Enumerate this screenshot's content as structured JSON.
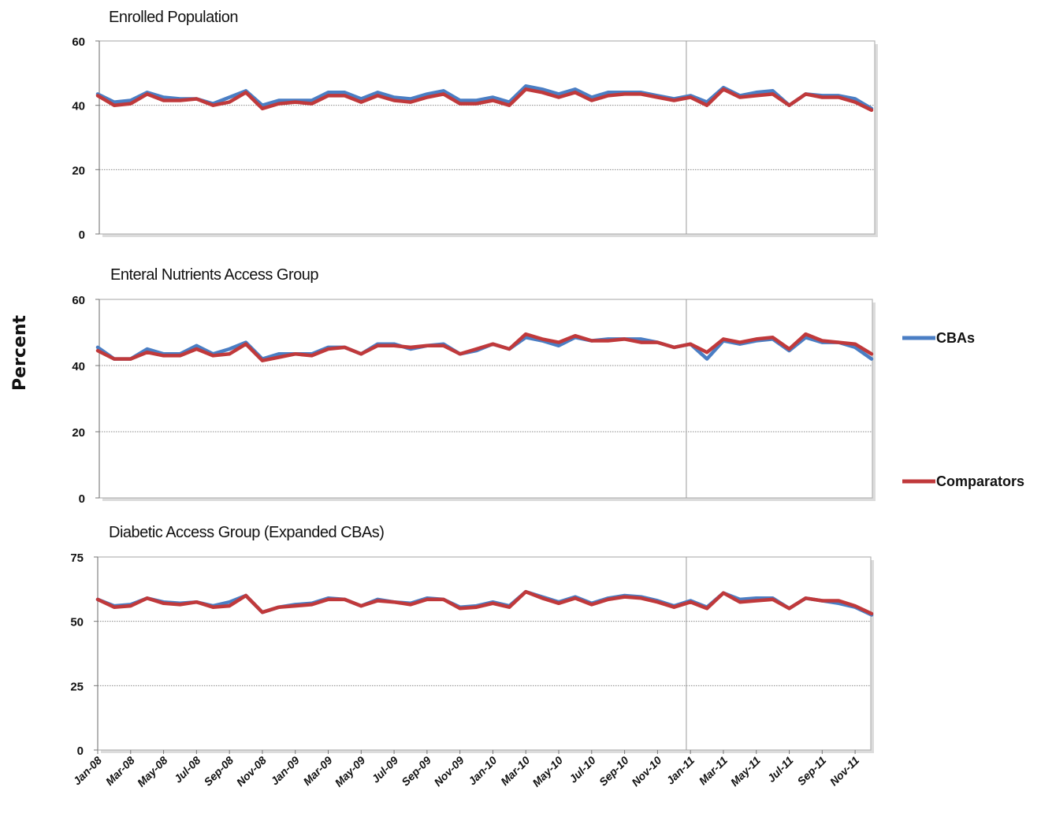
{
  "ylabel": "Percent",
  "legend": [
    {
      "name": "CBAs",
      "color": "#4a7ec4"
    },
    {
      "name": "Comparators",
      "color": "#c0393b"
    }
  ],
  "x_tick_labels": [
    "Jan-08",
    "Mar-08",
    "May-08",
    "Jul-08",
    "Sep-08",
    "Nov-08",
    "Jan-09",
    "Mar-09",
    "May-09",
    "Jul-09",
    "Sep-09",
    "Nov-09",
    "Jan-10",
    "Mar-10",
    "May-10",
    "Jul-10",
    "Sep-10",
    "Nov-10",
    "Jan-11",
    "Mar-11",
    "May-11",
    "Jul-11",
    "Sep-11",
    "Nov-11"
  ],
  "chart_data": [
    {
      "type": "line",
      "title": "Enrolled Population",
      "ylim": [
        0,
        60
      ],
      "yticks": [
        0,
        20,
        40,
        60
      ],
      "x": [
        "Jan-08",
        "Feb-08",
        "Mar-08",
        "Apr-08",
        "May-08",
        "Jun-08",
        "Jul-08",
        "Aug-08",
        "Sep-08",
        "Oct-08",
        "Nov-08",
        "Dec-08",
        "Jan-09",
        "Feb-09",
        "Mar-09",
        "Apr-09",
        "May-09",
        "Jun-09",
        "Jul-09",
        "Aug-09",
        "Sep-09",
        "Oct-09",
        "Nov-09",
        "Dec-09",
        "Jan-10",
        "Feb-10",
        "Mar-10",
        "Apr-10",
        "May-10",
        "Jun-10",
        "Jul-10",
        "Aug-10",
        "Sep-10",
        "Oct-10",
        "Nov-10",
        "Dec-10",
        "Jan-11",
        "Feb-11",
        "Mar-11",
        "Apr-11",
        "May-11",
        "Jun-11",
        "Jul-11",
        "Aug-11",
        "Sep-11",
        "Oct-11",
        "Nov-11",
        "Dec-11"
      ],
      "marker_month": "Dec-10",
      "series": [
        {
          "name": "CBAs",
          "values": [
            43.5,
            41,
            41.5,
            44,
            42.5,
            42,
            42,
            40.5,
            42.5,
            44.5,
            40,
            41.5,
            41.5,
            41.5,
            44,
            44,
            42,
            44,
            42.5,
            42,
            43.5,
            44.5,
            41.5,
            41.5,
            42.5,
            41,
            46,
            45,
            43.5,
            45,
            42.5,
            44,
            44,
            44,
            43,
            42,
            43,
            41,
            45.5,
            43,
            44,
            44.5,
            40,
            43.5,
            43,
            43,
            42,
            39
          ]
        },
        {
          "name": "Comparators",
          "values": [
            43,
            40,
            40.5,
            43.5,
            41.5,
            41.5,
            42,
            40,
            41,
            44,
            39,
            40.5,
            41,
            40.5,
            43,
            43,
            41,
            43,
            41.5,
            41,
            42.5,
            43.5,
            40.5,
            40.5,
            41.5,
            40,
            45,
            44,
            42.5,
            44,
            41.5,
            43,
            43.5,
            43.5,
            42.5,
            41.5,
            42.5,
            40,
            45,
            42.5,
            43,
            43.5,
            40,
            43.5,
            42.5,
            42.5,
            41,
            38.5
          ]
        }
      ]
    },
    {
      "type": "line",
      "title": "Enteral Nutrients Access Group",
      "ylim": [
        0,
        60
      ],
      "yticks": [
        0,
        20,
        40,
        60
      ],
      "x": [
        "Jan-08",
        "Feb-08",
        "Mar-08",
        "Apr-08",
        "May-08",
        "Jun-08",
        "Jul-08",
        "Aug-08",
        "Sep-08",
        "Oct-08",
        "Nov-08",
        "Dec-08",
        "Jan-09",
        "Feb-09",
        "Mar-09",
        "Apr-09",
        "May-09",
        "Jun-09",
        "Jul-09",
        "Aug-09",
        "Sep-09",
        "Oct-09",
        "Nov-09",
        "Dec-09",
        "Jan-10",
        "Feb-10",
        "Mar-10",
        "Apr-10",
        "May-10",
        "Jun-10",
        "Jul-10",
        "Aug-10",
        "Sep-10",
        "Oct-10",
        "Nov-10",
        "Dec-10",
        "Jan-11",
        "Feb-11",
        "Mar-11",
        "Apr-11",
        "May-11",
        "Jun-11",
        "Jul-11",
        "Aug-11",
        "Sep-11",
        "Oct-11",
        "Nov-11",
        "Dec-11"
      ],
      "marker_month": "Dec-10",
      "series": [
        {
          "name": "CBAs",
          "values": [
            45.5,
            42,
            42,
            45,
            43.5,
            43.5,
            46,
            43.5,
            45,
            47,
            42,
            43.5,
            43.5,
            43.5,
            45.5,
            45.5,
            43.5,
            46.5,
            46.5,
            45,
            46,
            46.5,
            43.5,
            44.5,
            46.5,
            45,
            48.5,
            47.5,
            46,
            48.5,
            47.5,
            48,
            48,
            48,
            47,
            45.5,
            46.5,
            42,
            47.5,
            46.5,
            47.5,
            48,
            44.5,
            48.5,
            47,
            47,
            45.5,
            42
          ]
        },
        {
          "name": "Comparators",
          "values": [
            44.5,
            42,
            42,
            44,
            43,
            43,
            45,
            43,
            43.5,
            46.5,
            41.5,
            42.5,
            43.5,
            43,
            45,
            45.5,
            43.5,
            46,
            46,
            45.5,
            46,
            46,
            43.5,
            45,
            46.5,
            45,
            49.5,
            48,
            47,
            49,
            47.5,
            47.5,
            48,
            47,
            47,
            45.5,
            46.5,
            44,
            48,
            47,
            48,
            48.5,
            45,
            49.5,
            47.5,
            47,
            46.5,
            43.5
          ]
        }
      ]
    },
    {
      "type": "line",
      "title": "Diabetic Access Group (Expanded CBAs)",
      "ylim": [
        0,
        75
      ],
      "yticks": [
        0,
        25,
        50,
        75
      ],
      "x": [
        "Jan-08",
        "Feb-08",
        "Mar-08",
        "Apr-08",
        "May-08",
        "Jun-08",
        "Jul-08",
        "Aug-08",
        "Sep-08",
        "Oct-08",
        "Nov-08",
        "Dec-08",
        "Jan-09",
        "Feb-09",
        "Mar-09",
        "Apr-09",
        "May-09",
        "Jun-09",
        "Jul-09",
        "Aug-09",
        "Sep-09",
        "Oct-09",
        "Nov-09",
        "Dec-09",
        "Jan-10",
        "Feb-10",
        "Mar-10",
        "Apr-10",
        "May-10",
        "Jun-10",
        "Jul-10",
        "Aug-10",
        "Sep-10",
        "Oct-10",
        "Nov-10",
        "Dec-10",
        "Jan-11",
        "Feb-11",
        "Mar-11",
        "Apr-11",
        "May-11",
        "Jun-11",
        "Jul-11",
        "Aug-11",
        "Sep-11",
        "Oct-11",
        "Nov-11",
        "Dec-11"
      ],
      "marker_month": "Dec-10",
      "series": [
        {
          "name": "CBAs",
          "values": [
            58.5,
            56,
            56.5,
            59,
            57.5,
            57,
            57.5,
            56,
            57.5,
            60,
            53.5,
            55.5,
            56.5,
            57,
            59,
            58.5,
            56,
            58.5,
            57.5,
            57,
            59,
            58.5,
            55.5,
            56,
            57.5,
            56,
            61.5,
            59.5,
            57.5,
            59.5,
            57,
            59,
            60,
            59.5,
            58,
            56,
            58,
            55.5,
            61,
            58.5,
            59,
            59,
            55,
            59,
            58,
            57,
            55.5,
            52.5
          ]
        },
        {
          "name": "Comparators",
          "values": [
            58.5,
            55.5,
            56,
            59,
            57,
            56.5,
            57.5,
            55.5,
            56,
            60,
            53.5,
            55.5,
            56,
            56.5,
            58.5,
            58.5,
            56,
            58,
            57.5,
            56.5,
            58.5,
            58.5,
            55,
            55.5,
            57,
            55.5,
            61.5,
            59,
            57,
            59,
            56.5,
            58.5,
            59.5,
            59,
            57.5,
            55.5,
            57.5,
            55,
            61,
            57.5,
            58,
            58.5,
            55,
            59,
            58,
            58,
            56,
            53
          ]
        }
      ]
    }
  ]
}
